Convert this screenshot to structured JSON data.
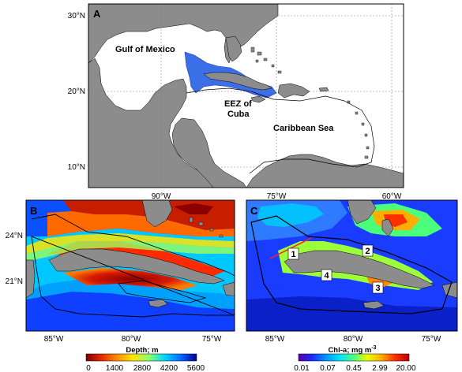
{
  "panel_a": {
    "letter": "A",
    "lat_ticks": [
      "30°N",
      "20°N",
      "10°N"
    ],
    "lon_ticks": [
      "90°W",
      "75°W",
      "60°W"
    ],
    "labels": {
      "gulf": "Gulf of Mexico",
      "eez_line1": "EEZ of",
      "eez_line2": "Cuba",
      "caribbean": "Caribbean Sea"
    },
    "colors": {
      "land": "#8c8c8c",
      "eez": "#3a6fe8",
      "ocean": "#ffffff"
    }
  },
  "panel_b": {
    "letter": "B",
    "lat_ticks": [
      "24°N",
      "21°N"
    ],
    "lon_ticks": [
      "85°W",
      "80°W",
      "75°W"
    ],
    "colorbar": {
      "title": "Depth; m",
      "ticks": [
        "0",
        "1400",
        "2800",
        "4200",
        "5600"
      ],
      "colors": [
        "#7f0000",
        "#e32b00",
        "#ff8a00",
        "#ffe600",
        "#8bff6a",
        "#00d6ff",
        "#0066ff",
        "#00008f"
      ]
    }
  },
  "panel_c": {
    "letter": "C",
    "lon_ticks": [
      "85°W",
      "80°W",
      "75°W"
    ],
    "sites": [
      "1",
      "2",
      "3",
      "4"
    ],
    "colorbar": {
      "title": "Chl-a; mg m",
      "title_sup": "-3",
      "ticks": [
        "0.01",
        "0.07",
        "0.45",
        "2.99",
        "20.00"
      ],
      "colors": [
        "#5a00a0",
        "#1a2aff",
        "#0096ff",
        "#00e0ff",
        "#4cff7a",
        "#e6ff00",
        "#ffae00",
        "#ff3000",
        "#c00000"
      ]
    }
  }
}
